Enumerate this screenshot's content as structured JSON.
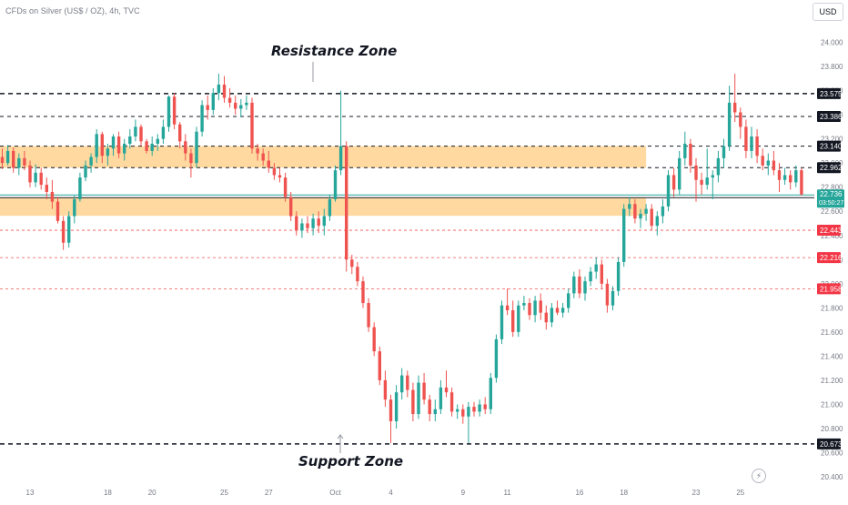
{
  "header": {
    "symbol": "CFDs on Silver (US$ / OZ), 4h, TVC",
    "currency": "USD"
  },
  "annotations": {
    "resistance": "Resistance Zone",
    "support": "Support Zone"
  },
  "icons": {
    "lightning": "lightning-icon"
  },
  "colors": {
    "up": "#26a69a",
    "down": "#ef5350",
    "zone": "#ffcc80",
    "current_price_bg": "#26a69a",
    "level_black_bg": "#131722",
    "level_red_bg": "#f23645",
    "axis_text": "#787b86"
  },
  "chart_data": {
    "type": "candlestick",
    "y_axis": {
      "range": [
        20.37,
        24.17
      ],
      "ticks": [
        "24.000",
        "23.800",
        "23.600",
        "23.400",
        "23.200",
        "23.000",
        "22.800",
        "22.600",
        "22.400",
        "22.200",
        "22.000",
        "21.800",
        "21.600",
        "21.400",
        "21.200",
        "21.000",
        "20.800",
        "20.600",
        "20.400"
      ]
    },
    "x_axis": {
      "ticks": [
        {
          "label": "13",
          "bar": 5
        },
        {
          "label": "18",
          "bar": 19
        },
        {
          "label": "20",
          "bar": 27
        },
        {
          "label": "25",
          "bar": 40
        },
        {
          "label": "27",
          "bar": 48
        },
        {
          "label": "Oct",
          "bar": 60
        },
        {
          "label": "4",
          "bar": 70
        },
        {
          "label": "9",
          "bar": 83
        },
        {
          "label": "11",
          "bar": 91
        },
        {
          "label": "16",
          "bar": 104
        },
        {
          "label": "18",
          "bar": 112
        },
        {
          "label": "23",
          "bar": 125
        },
        {
          "label": "25",
          "bar": 133
        }
      ]
    },
    "zones": [
      {
        "name": "Resistance Zone",
        "top": 23.14,
        "bottom": 22.962,
        "end_bar": 116
      },
      {
        "name": "Support Zone",
        "top": 22.713,
        "bottom": 22.563,
        "end_bar": 116
      }
    ],
    "levels": [
      {
        "value": 23.575,
        "label": "23.575",
        "style": "black-dashed"
      },
      {
        "value": 23.386,
        "label": "23.386",
        "style": "black-dashed-thin"
      },
      {
        "value": 23.14,
        "label": "23.140",
        "style": "black-dashed-thin"
      },
      {
        "value": 22.962,
        "label": "22.962",
        "style": "black-dashed-thin"
      },
      {
        "value": 22.713,
        "label": "22.713",
        "style": "black-solid"
      },
      {
        "value": 22.443,
        "label": "22.443",
        "style": "red-dashed"
      },
      {
        "value": 22.216,
        "label": "22.216",
        "style": "red-dashed"
      },
      {
        "value": 21.958,
        "label": "21.958",
        "style": "red-dashed"
      },
      {
        "value": 20.673,
        "label": "20.673",
        "style": "black-dashed"
      }
    ],
    "current_price": {
      "value": 22.736,
      "label": "22.736",
      "countdown": "03:50:27"
    },
    "candles": [
      [
        23.05,
        23.12,
        22.95,
        23.0
      ],
      [
        23.0,
        23.15,
        22.98,
        23.1
      ],
      [
        23.1,
        23.13,
        22.92,
        22.96
      ],
      [
        22.96,
        23.08,
        22.9,
        23.04
      ],
      [
        23.04,
        23.1,
        22.94,
        22.98
      ],
      [
        22.98,
        23.02,
        22.8,
        22.84
      ],
      [
        22.84,
        22.99,
        22.8,
        22.92
      ],
      [
        22.92,
        22.96,
        22.78,
        22.82
      ],
      [
        22.82,
        22.88,
        22.7,
        22.76
      ],
      [
        22.76,
        22.86,
        22.62,
        22.68
      ],
      [
        22.68,
        22.72,
        22.5,
        22.52
      ],
      [
        22.52,
        22.56,
        22.28,
        22.34
      ],
      [
        22.34,
        22.6,
        22.3,
        22.56
      ],
      [
        22.56,
        22.73,
        22.5,
        22.7
      ],
      [
        22.7,
        22.92,
        22.68,
        22.88
      ],
      [
        22.88,
        23.02,
        22.85,
        22.98
      ],
      [
        22.98,
        23.08,
        22.92,
        23.05
      ],
      [
        23.05,
        23.28,
        23.0,
        23.24
      ],
      [
        23.24,
        23.26,
        23.0,
        23.06
      ],
      [
        23.06,
        23.16,
        22.98,
        23.12
      ],
      [
        23.12,
        23.24,
        23.06,
        23.22
      ],
      [
        23.22,
        23.26,
        23.04,
        23.08
      ],
      [
        23.08,
        23.2,
        23.02,
        23.16
      ],
      [
        23.16,
        23.28,
        23.12,
        23.22
      ],
      [
        23.22,
        23.36,
        23.18,
        23.3
      ],
      [
        23.3,
        23.32,
        23.14,
        23.18
      ],
      [
        23.18,
        23.2,
        23.08,
        23.1
      ],
      [
        23.1,
        23.22,
        23.06,
        23.16
      ],
      [
        23.16,
        23.24,
        23.1,
        23.2
      ],
      [
        23.2,
        23.36,
        23.16,
        23.3
      ],
      [
        23.3,
        23.56,
        23.26,
        23.55
      ],
      [
        23.55,
        23.58,
        23.28,
        23.32
      ],
      [
        23.32,
        23.34,
        23.12,
        23.18
      ],
      [
        23.18,
        23.24,
        23.02,
        23.08
      ],
      [
        23.08,
        23.12,
        22.88,
        23.0
      ],
      [
        23.0,
        23.3,
        22.96,
        23.26
      ],
      [
        23.26,
        23.52,
        23.22,
        23.48
      ],
      [
        23.48,
        23.56,
        23.36,
        23.44
      ],
      [
        23.44,
        23.62,
        23.4,
        23.58
      ],
      [
        23.58,
        23.74,
        23.52,
        23.65
      ],
      [
        23.65,
        23.72,
        23.5,
        23.54
      ],
      [
        23.54,
        23.62,
        23.46,
        23.5
      ],
      [
        23.5,
        23.56,
        23.4,
        23.45
      ],
      [
        23.45,
        23.53,
        23.38,
        23.48
      ],
      [
        23.48,
        23.56,
        23.44,
        23.5
      ],
      [
        23.5,
        23.54,
        23.08,
        23.12
      ],
      [
        23.12,
        23.16,
        23.02,
        23.08
      ],
      [
        23.08,
        23.12,
        22.98,
        23.02
      ],
      [
        23.02,
        23.1,
        22.92,
        22.96
      ],
      [
        22.96,
        23.0,
        22.86,
        22.9
      ],
      [
        22.9,
        22.96,
        22.84,
        22.88
      ],
      [
        22.88,
        22.92,
        22.68,
        22.72
      ],
      [
        22.72,
        22.76,
        22.52,
        22.56
      ],
      [
        22.56,
        22.6,
        22.4,
        22.44
      ],
      [
        22.44,
        22.54,
        22.38,
        22.5
      ],
      [
        22.5,
        22.56,
        22.42,
        22.46
      ],
      [
        22.46,
        22.58,
        22.4,
        22.54
      ],
      [
        22.54,
        22.6,
        22.42,
        22.48
      ],
      [
        22.48,
        22.62,
        22.4,
        22.56
      ],
      [
        22.56,
        22.74,
        22.52,
        22.7
      ],
      [
        22.7,
        22.98,
        22.68,
        22.94
      ],
      [
        22.94,
        23.6,
        22.9,
        23.14
      ],
      [
        23.14,
        23.18,
        22.1,
        22.2
      ],
      [
        22.2,
        22.24,
        22.08,
        22.14
      ],
      [
        22.14,
        22.18,
        21.98,
        22.02
      ],
      [
        22.02,
        22.06,
        21.8,
        21.84
      ],
      [
        21.84,
        21.88,
        21.6,
        21.64
      ],
      [
        21.64,
        21.68,
        21.4,
        21.44
      ],
      [
        21.44,
        21.48,
        21.16,
        21.2
      ],
      [
        21.2,
        21.28,
        20.98,
        21.04
      ],
      [
        21.04,
        21.08,
        20.68,
        20.86
      ],
      [
        20.86,
        21.16,
        20.8,
        21.1
      ],
      [
        21.1,
        21.3,
        21.04,
        21.24
      ],
      [
        21.24,
        21.28,
        21.06,
        21.12
      ],
      [
        21.12,
        21.18,
        20.86,
        20.92
      ],
      [
        20.92,
        21.24,
        20.88,
        21.18
      ],
      [
        21.18,
        21.26,
        21.0,
        21.04
      ],
      [
        21.04,
        21.08,
        20.86,
        20.92
      ],
      [
        20.92,
        21.04,
        20.86,
        20.96
      ],
      [
        20.96,
        21.2,
        20.92,
        21.14
      ],
      [
        21.14,
        21.28,
        21.06,
        21.1
      ],
      [
        21.1,
        21.14,
        20.9,
        20.94
      ],
      [
        20.94,
        21.0,
        20.88,
        20.96
      ],
      [
        20.96,
        21.0,
        20.84,
        20.9
      ],
      [
        20.9,
        21.02,
        20.68,
        20.98
      ],
      [
        20.98,
        21.02,
        20.9,
        20.94
      ],
      [
        20.94,
        21.04,
        20.9,
        21.0
      ],
      [
        21.0,
        21.06,
        20.92,
        20.96
      ],
      [
        20.96,
        21.26,
        20.92,
        21.22
      ],
      [
        21.22,
        21.58,
        21.18,
        21.54
      ],
      [
        21.54,
        21.86,
        21.5,
        21.82
      ],
      [
        21.82,
        21.96,
        21.74,
        21.78
      ],
      [
        21.78,
        21.86,
        21.56,
        21.6
      ],
      [
        21.6,
        21.86,
        21.56,
        21.82
      ],
      [
        21.82,
        21.9,
        21.78,
        21.84
      ],
      [
        21.84,
        21.88,
        21.7,
        21.74
      ],
      [
        21.74,
        21.9,
        21.68,
        21.86
      ],
      [
        21.86,
        21.92,
        21.7,
        21.76
      ],
      [
        21.76,
        21.82,
        21.62,
        21.68
      ],
      [
        21.68,
        21.84,
        21.64,
        21.8
      ],
      [
        21.8,
        21.86,
        21.74,
        21.76
      ],
      [
        21.76,
        21.84,
        21.72,
        21.8
      ],
      [
        21.8,
        21.96,
        21.76,
        21.92
      ],
      [
        21.92,
        22.1,
        21.88,
        22.06
      ],
      [
        22.06,
        22.12,
        21.88,
        21.92
      ],
      [
        21.92,
        22.06,
        21.86,
        22.02
      ],
      [
        22.02,
        22.14,
        21.98,
        22.1
      ],
      [
        22.1,
        22.22,
        22.04,
        22.16
      ],
      [
        22.16,
        22.2,
        21.96,
        22.0
      ],
      [
        22.0,
        22.04,
        21.76,
        21.82
      ],
      [
        21.82,
        21.98,
        21.78,
        21.94
      ],
      [
        21.94,
        22.22,
        21.9,
        22.18
      ],
      [
        22.18,
        22.66,
        22.14,
        22.62
      ],
      [
        22.62,
        22.72,
        22.56,
        22.66
      ],
      [
        22.66,
        22.7,
        22.5,
        22.54
      ],
      [
        22.54,
        22.62,
        22.46,
        22.58
      ],
      [
        22.58,
        22.66,
        22.52,
        22.62
      ],
      [
        22.62,
        22.66,
        22.44,
        22.48
      ],
      [
        22.48,
        22.6,
        22.4,
        22.56
      ],
      [
        22.56,
        22.7,
        22.5,
        22.64
      ],
      [
        22.64,
        22.94,
        22.6,
        22.9
      ],
      [
        22.9,
        22.96,
        22.72,
        22.78
      ],
      [
        22.78,
        23.1,
        22.74,
        23.04
      ],
      [
        23.04,
        23.26,
        22.98,
        23.16
      ],
      [
        23.16,
        23.2,
        22.92,
        22.98
      ],
      [
        22.98,
        23.04,
        22.68,
        22.86
      ],
      [
        22.86,
        22.92,
        22.74,
        22.82
      ],
      [
        22.82,
        23.12,
        22.78,
        22.88
      ],
      [
        22.88,
        22.94,
        22.7,
        22.9
      ],
      [
        22.9,
        23.1,
        22.84,
        23.04
      ],
      [
        23.04,
        23.2,
        22.96,
        23.14
      ],
      [
        23.14,
        23.64,
        23.1,
        23.5
      ],
      [
        23.5,
        23.74,
        23.34,
        23.42
      ],
      [
        23.42,
        23.46,
        23.2,
        23.3
      ],
      [
        23.3,
        23.36,
        23.04,
        23.1
      ],
      [
        23.1,
        23.3,
        23.04,
        23.22
      ],
      [
        23.22,
        23.28,
        23.0,
        23.06
      ],
      [
        23.06,
        23.12,
        22.94,
        22.98
      ],
      [
        22.98,
        23.08,
        22.9,
        23.02
      ],
      [
        23.02,
        23.1,
        22.9,
        22.94
      ],
      [
        22.94,
        23.0,
        22.76,
        22.86
      ],
      [
        22.86,
        22.96,
        22.82,
        22.9
      ],
      [
        22.9,
        22.94,
        22.78,
        22.84
      ],
      [
        22.84,
        22.98,
        22.8,
        22.94
      ],
      [
        22.94,
        22.96,
        22.73,
        22.74
      ]
    ]
  }
}
